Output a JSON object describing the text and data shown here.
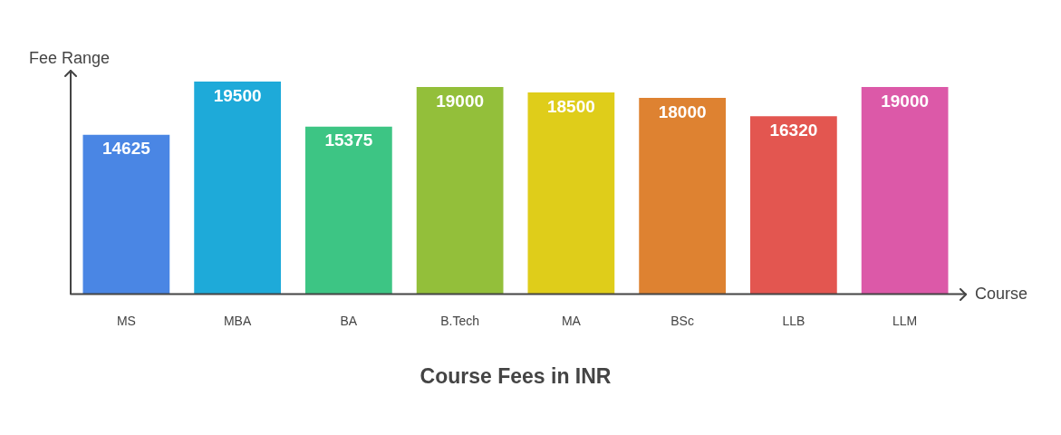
{
  "chart_data": {
    "type": "bar",
    "title": "Course Fees in INR",
    "xlabel": "Course",
    "ylabel": "Fee Range",
    "categories": [
      "MS",
      "MBA",
      "BA",
      "B.Tech",
      "MA",
      "BSc",
      "LLB",
      "LLM"
    ],
    "values": [
      14625,
      19500,
      15375,
      19000,
      18500,
      18000,
      16320,
      19000
    ],
    "colors": [
      "#4a86e4",
      "#1eaad9",
      "#3dc584",
      "#93bf3a",
      "#dfcd1a",
      "#de8231",
      "#e35650",
      "#dc59a8"
    ],
    "data_labels": true,
    "grid": false,
    "legend": false,
    "tick_labels": "x"
  }
}
